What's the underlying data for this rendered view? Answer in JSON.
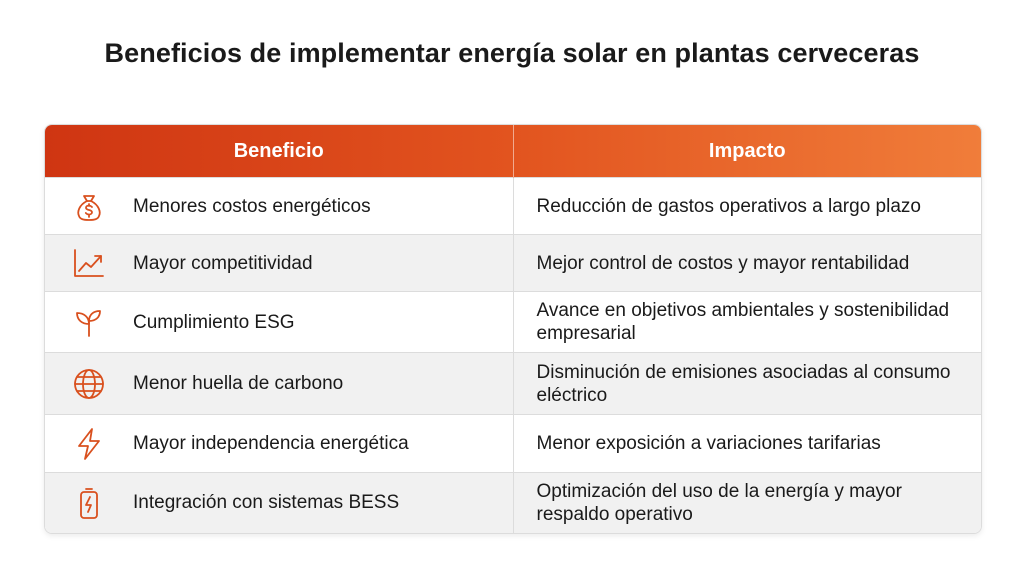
{
  "header": {
    "title": "Beneficios de implementar energía solar en plantas cerveceras"
  },
  "table": {
    "columns": [
      "Beneficio",
      "Impacto"
    ],
    "rows": [
      [
        "Menores costos energéticos",
        "Reducción de gastos operativos a largo plazo"
      ],
      [
        "Mayor competitividad",
        "Mejor control de costos y mayor rentabilidad"
      ],
      [
        "Cumplimiento ESG",
        "Avance en objetivos ambientales y sostenibilidad empresarial"
      ],
      [
        "Menor huella de carbono",
        "Disminución de emisiones asociadas al consumo eléctrico"
      ],
      [
        "Mayor independencia energética",
        "Menor exposición a variaciones tarifarias"
      ],
      [
        "Integración con sistemas BESS",
        "Optimización del uso de la energía y mayor respaldo operativo"
      ]
    ]
  }
}
